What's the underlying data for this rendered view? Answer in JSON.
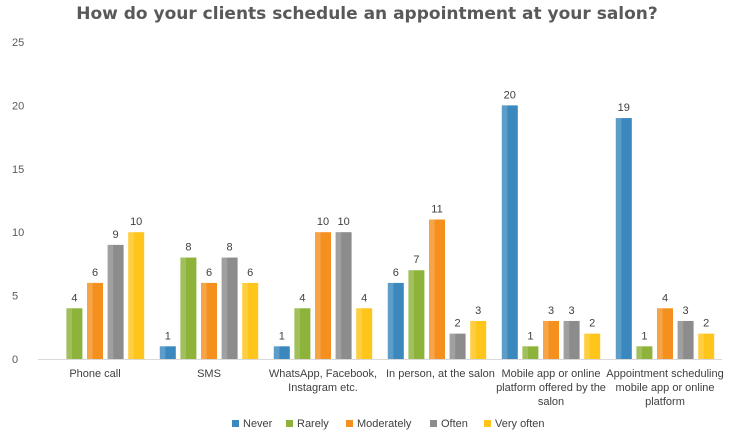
{
  "chart_data": {
    "type": "bar",
    "title": "How do your clients schedule an appointment at your salon?",
    "categories": [
      [
        "Phone call"
      ],
      [
        "SMS"
      ],
      [
        "WhatsApp, Facebook,",
        "Instagram etc."
      ],
      [
        "In person, at the salon"
      ],
      [
        "Mobile app or online",
        "platform offered by the",
        "salon"
      ],
      [
        "Appointment scheduling",
        "mobile app or online",
        "platform"
      ]
    ],
    "series": [
      {
        "name": "Never",
        "color": "#3A88BE",
        "values": [
          0,
          1,
          1,
          6,
          20,
          19
        ]
      },
      {
        "name": "Rarely",
        "color": "#8DB33A",
        "values": [
          4,
          8,
          4,
          7,
          1,
          1
        ]
      },
      {
        "name": "Moderately",
        "color": "#F5901E",
        "values": [
          6,
          6,
          10,
          11,
          3,
          4
        ]
      },
      {
        "name": "Often",
        "color": "#8C8C8C",
        "values": [
          9,
          8,
          10,
          2,
          3,
          3
        ]
      },
      {
        "name": "Very often",
        "color": "#FFC51A",
        "values": [
          10,
          6,
          4,
          3,
          2,
          2
        ]
      }
    ],
    "y_ticks": [
      "0",
      "5",
      "10",
      "15",
      "20",
      "25"
    ],
    "ylim": [
      0,
      25
    ],
    "legend": "bottom",
    "grid": false
  }
}
